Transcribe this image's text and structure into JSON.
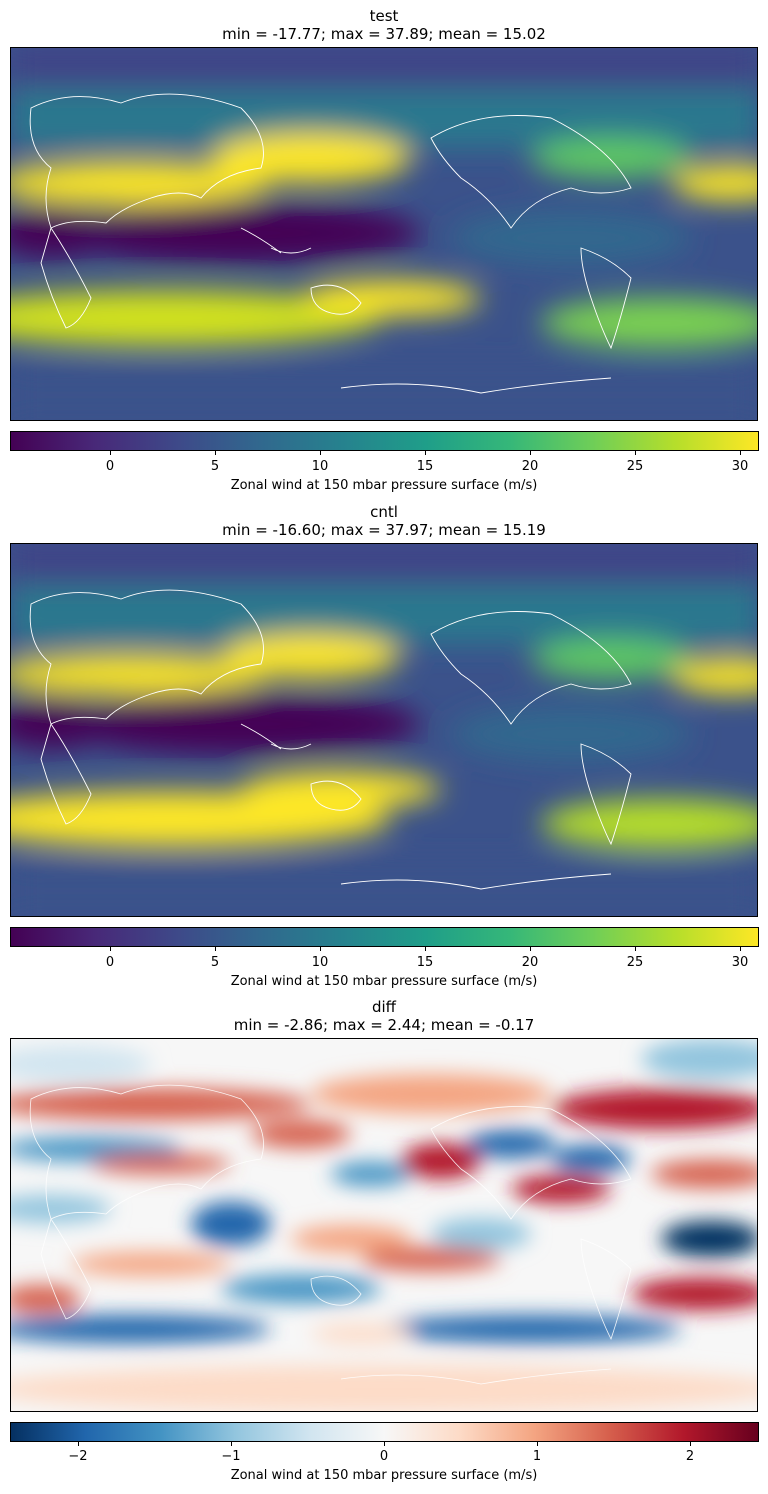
{
  "chart_data": [
    {
      "type": "heatmap",
      "title": "test",
      "subtitle": "min = -17.77; max = 37.89; mean = 15.02",
      "colormap": "viridis",
      "colorbar": {
        "label": "Zonal wind at 150 mbar pressure surface (m/s)",
        "range": [
          -4.5,
          31
        ],
        "ticks": [
          0,
          5,
          10,
          15,
          20,
          25,
          30
        ],
        "tick_labels": [
          "0",
          "5",
          "10",
          "15",
          "20",
          "25",
          "30"
        ]
      },
      "stats": {
        "min": -17.77,
        "max": 37.89,
        "mean": 15.02
      }
    },
    {
      "type": "heatmap",
      "title": "cntl",
      "subtitle": "min = -16.60; max = 37.97; mean = 15.19",
      "colormap": "viridis",
      "colorbar": {
        "label": "Zonal wind at 150 mbar pressure surface (m/s)",
        "range": [
          -4.5,
          31
        ],
        "ticks": [
          0,
          5,
          10,
          15,
          20,
          25,
          30
        ],
        "tick_labels": [
          "0",
          "5",
          "10",
          "15",
          "20",
          "25",
          "30"
        ]
      },
      "stats": {
        "min": -16.6,
        "max": 37.97,
        "mean": 15.19
      }
    },
    {
      "type": "heatmap",
      "title": "diff",
      "subtitle": "min = -2.86; max = 2.44; mean = -0.17",
      "colormap": "RdBu_r",
      "colorbar": {
        "label": "Zonal wind at 150 mbar pressure surface (m/s)",
        "range": [
          -2.4,
          2.4
        ],
        "ticks": [
          -2,
          -1,
          0,
          1,
          2
        ],
        "tick_labels": [
          "−2",
          "−1",
          "0",
          "1",
          "2"
        ]
      },
      "stats": {
        "min": -2.86,
        "max": 2.44,
        "mean": -0.17
      }
    }
  ]
}
